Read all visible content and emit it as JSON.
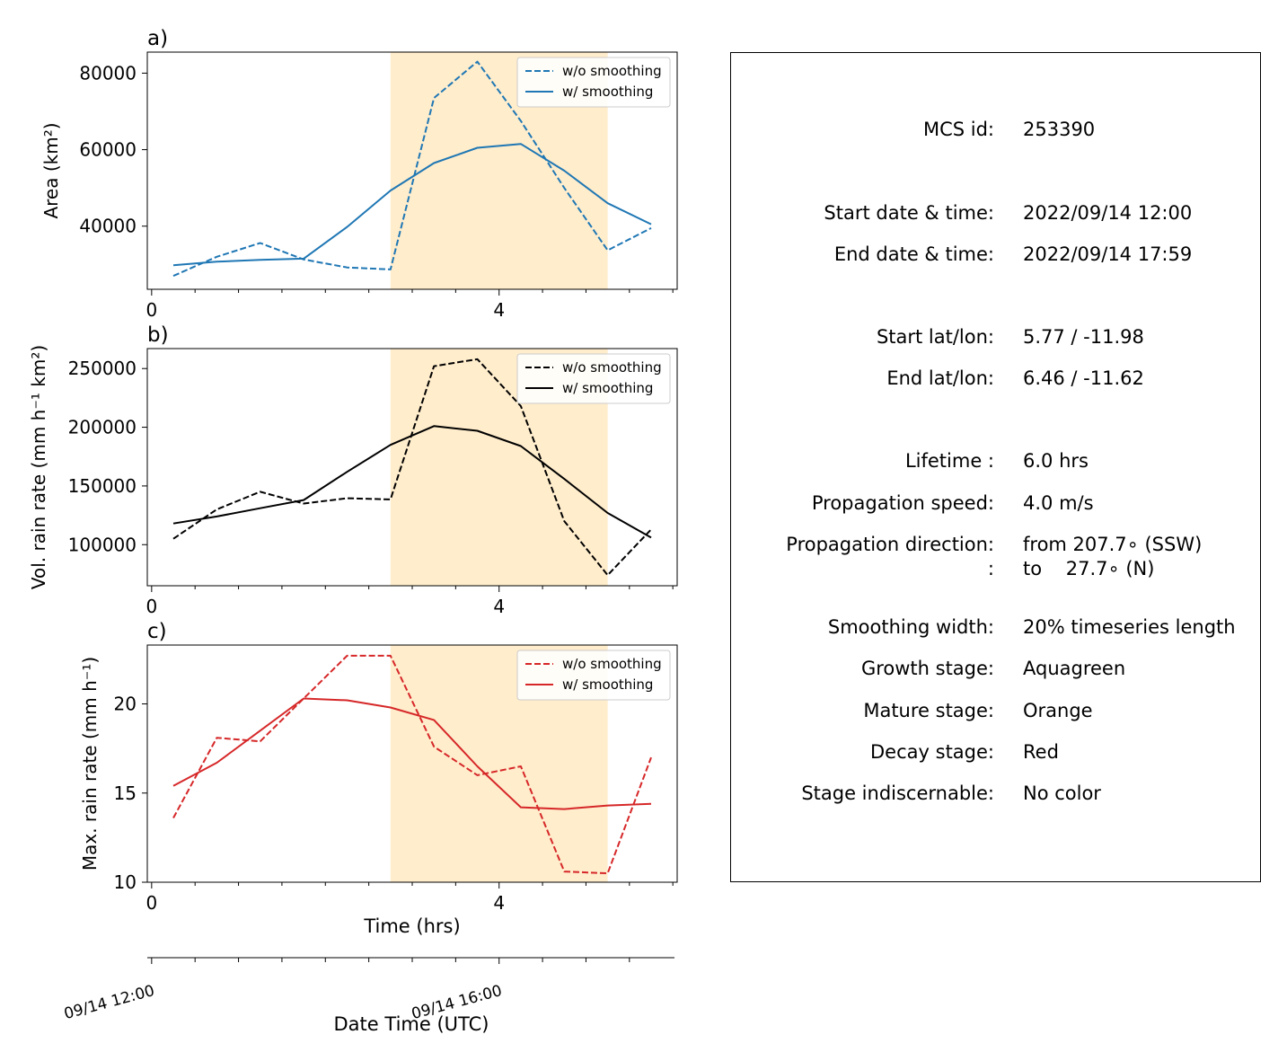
{
  "chart_data": [
    {
      "type": "line",
      "panel_label": "a)",
      "ylabel": "Area  (km²)",
      "xlabel": "",
      "xlim": [
        -0.05,
        6.05
      ],
      "ylim": [
        23500,
        85500
      ],
      "xticks": [
        0,
        4
      ],
      "yticks": [
        40000,
        60000,
        80000
      ],
      "shaded_span": [
        2.75,
        5.25
      ],
      "color": "#1f77b4",
      "legend": {
        "position": "top-right",
        "entries": [
          "w/o smoothing",
          "w/ smoothing"
        ]
      },
      "series": [
        {
          "name": "w/o smoothing",
          "style": "dashed",
          "x": [
            0.25,
            0.75,
            1.25,
            1.75,
            2.25,
            2.75,
            3.25,
            3.75,
            4.25,
            4.75,
            5.25,
            5.75
          ],
          "y": [
            27000,
            32000,
            35600,
            31300,
            29200,
            28700,
            73500,
            83000,
            67500,
            50000,
            33700,
            39500
          ]
        },
        {
          "name": "w/ smoothing",
          "style": "solid",
          "x": [
            0.25,
            0.75,
            1.25,
            1.75,
            2.25,
            2.75,
            3.25,
            3.75,
            4.25,
            4.75,
            5.25,
            5.75
          ],
          "y": [
            29800,
            30700,
            31200,
            31500,
            39800,
            49300,
            56500,
            60500,
            61500,
            54500,
            46000,
            40500
          ]
        }
      ]
    },
    {
      "type": "line",
      "panel_label": "b)",
      "ylabel": "Vol. rain rate (mm h⁻¹ km²)",
      "xlabel": "",
      "xlim": [
        -0.05,
        6.05
      ],
      "ylim": [
        65000,
        267000
      ],
      "xticks": [
        0,
        4
      ],
      "yticks": [
        100000,
        150000,
        200000,
        250000
      ],
      "shaded_span": [
        2.75,
        5.25
      ],
      "color": "#000000",
      "legend": {
        "position": "top-right",
        "entries": [
          "w/o smoothing",
          "w/ smoothing"
        ]
      },
      "series": [
        {
          "name": "w/o smoothing",
          "style": "dashed",
          "x": [
            0.25,
            0.75,
            1.25,
            1.75,
            2.25,
            2.75,
            3.25,
            3.75,
            4.25,
            4.75,
            5.25,
            5.75
          ],
          "y": [
            105000,
            130000,
            145000,
            135000,
            139500,
            138500,
            252000,
            258000,
            218000,
            120000,
            74000,
            113000
          ]
        },
        {
          "name": "w/ smoothing",
          "style": "solid",
          "x": [
            0.25,
            0.75,
            1.25,
            1.75,
            2.25,
            2.75,
            3.25,
            3.75,
            4.25,
            4.75,
            5.25,
            5.75
          ],
          "y": [
            118000,
            124000,
            131000,
            138000,
            162000,
            185000,
            201000,
            197000,
            184000,
            156000,
            127000,
            106000
          ]
        }
      ]
    },
    {
      "type": "line",
      "panel_label": "c)",
      "ylabel": "Max. rain rate  (mm h⁻¹)",
      "xlabel": "Time (hrs)",
      "xlim": [
        -0.05,
        6.05
      ],
      "ylim": [
        10,
        23.3
      ],
      "xticks": [
        0,
        4
      ],
      "yticks": [
        10,
        15,
        20
      ],
      "shaded_span": [
        2.75,
        5.25
      ],
      "color": "#d62728",
      "legend": {
        "position": "top-right",
        "entries": [
          "w/o smoothing",
          "w/ smoothing"
        ]
      },
      "series": [
        {
          "name": "w/o smoothing",
          "style": "dashed",
          "x": [
            0.25,
            0.75,
            1.25,
            1.75,
            2.25,
            2.75,
            3.25,
            3.75,
            4.25,
            4.75,
            5.25,
            5.75
          ],
          "y": [
            13.6,
            18.1,
            17.9,
            20.3,
            22.7,
            22.7,
            17.6,
            16.0,
            16.5,
            10.6,
            10.5,
            17.0
          ]
        },
        {
          "name": "w/ smoothing",
          "style": "solid",
          "x": [
            0.25,
            0.75,
            1.25,
            1.75,
            2.25,
            2.75,
            3.25,
            3.75,
            4.25,
            4.75,
            5.25,
            5.75
          ],
          "y": [
            15.4,
            16.7,
            18.5,
            20.3,
            20.2,
            19.8,
            19.1,
            16.5,
            14.2,
            14.1,
            14.3,
            14.4
          ]
        }
      ]
    }
  ],
  "date_axis": {
    "label": "Date Time (UTC)",
    "range": [
      "2022/09/14 12:00",
      "2022/09/14 17:59"
    ],
    "tick_labels": [
      "09/14 12:00",
      "09/14 16:00"
    ],
    "tick_positions_hrs": [
      0,
      4
    ]
  },
  "info": {
    "rows": [
      {
        "key": "MCS id:",
        "value": "253390"
      },
      {
        "key": "Start date & time:",
        "value": "2022/09/14 12:00"
      },
      {
        "key": "End date & time:",
        "value": "2022/09/14 17:59"
      },
      {
        "key": "Start lat/lon:",
        "value": "5.77 / -11.98"
      },
      {
        "key": "End lat/lon:",
        "value": "6.46 / -11.62"
      },
      {
        "key": "Lifetime :",
        "value": "6.0 hrs"
      },
      {
        "key": "Propagation speed:",
        "value": "4.0 m/s"
      },
      {
        "key": "Propagation direction:",
        "value": "from 207.7∘ (SSW)"
      },
      {
        "key": ":",
        "value": "to    27.7∘ (N)"
      },
      {
        "key": "Smoothing width:",
        "value": "20% timeseries length"
      },
      {
        "key": "Growth stage:",
        "value": "Aquagreen"
      },
      {
        "key": "Mature stage:",
        "value": "Orange"
      },
      {
        "key": "Decay stage:",
        "value": "Red"
      },
      {
        "key": "Stage indiscernable:",
        "value": "No color"
      }
    ]
  },
  "colors": {
    "shade": "#ffedcc",
    "axis": "#000000"
  }
}
